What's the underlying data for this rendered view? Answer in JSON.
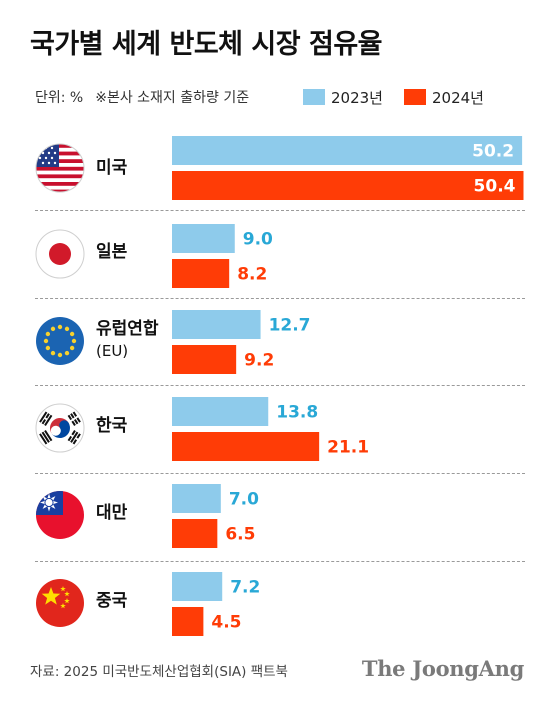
{
  "title": "국가별 세계 반도체 시장 점유율",
  "unit": "단위: %",
  "note": "※본사 소재지 출하량 기준",
  "source": "자료: 2025 미국반도체산업협회(SIA) 팩트북",
  "brand": "The JoongAng",
  "colors": {
    "series_2023": "#8ecbeb",
    "series_2024": "#ff3c06",
    "text_2023": "#29a8d6",
    "text_2024": "#ff3c06"
  },
  "rows": [
    {
      "name": "미국",
      "sub": "",
      "flag": "us-flag-icon"
    },
    {
      "name": "일본",
      "sub": "",
      "flag": "japan-flag-icon"
    },
    {
      "name": "유럽연합",
      "sub": "(EU)",
      "flag": "eu-flag-icon"
    },
    {
      "name": "한국",
      "sub": "",
      "flag": "korea-flag-icon"
    },
    {
      "name": "대만",
      "sub": "",
      "flag": "taiwan-flag-icon"
    },
    {
      "name": "중국",
      "sub": "",
      "flag": "china-flag-icon"
    }
  ],
  "chart_data": {
    "type": "bar",
    "orientation": "horizontal",
    "categories": [
      "미국",
      "일본",
      "유럽연합 (EU)",
      "한국",
      "대만",
      "중국"
    ],
    "series": [
      {
        "name": "2023년",
        "values": [
          50.2,
          9.0,
          12.7,
          13.8,
          7.0,
          7.2
        ]
      },
      {
        "name": "2024년",
        "values": [
          50.4,
          8.2,
          9.2,
          21.1,
          6.5,
          4.5
        ]
      }
    ],
    "data_labels": {
      "2023년": [
        "50.2",
        "9.0",
        "12.7",
        "13.8",
        "7.0",
        "7.2"
      ],
      "2024년": [
        "50.4",
        "8.2",
        "9.2",
        "21.1",
        "6.5",
        "4.5"
      ]
    },
    "xlim": [
      0,
      50.4
    ],
    "grid": false,
    "legend": "top-right"
  }
}
